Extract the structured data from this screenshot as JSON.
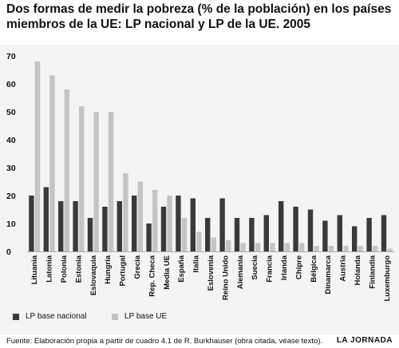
{
  "title": "Dos formas de medir la pobreza (% de la población) en los países miembros de la UE: LP nacional y LP de la UE. 2005",
  "footer": "Fuente: Elaboración propia a partir de cuadro 4.1 de R. Burkhauser (obra citada, véase texto).",
  "brand": "LA JORNADA",
  "colors": {
    "nacional": "#3a3a3a",
    "ue": "#c4c4c4"
  },
  "chart_data": {
    "type": "bar",
    "categories": [
      "Lituania",
      "Latonia",
      "Polonia",
      "Estonia",
      "Eslovaquia",
      "Hungría",
      "Portugal",
      "Grecia",
      "Rep. Checa",
      "Media UE",
      "España",
      "Italia",
      "Eslovenia",
      "Reino Unido",
      "Alemania",
      "Suecia",
      "Francia",
      "Irlanda",
      "Chipre",
      "Bélgica",
      "Dinamarca",
      "Austria",
      "Holanda",
      "Finlandia",
      "Luxemburgo"
    ],
    "series": [
      {
        "name": "LP base nacional",
        "values": [
          20,
          23,
          18,
          18,
          12,
          16,
          18,
          20,
          10,
          16,
          20,
          19,
          12,
          19,
          12,
          12,
          13,
          18,
          16,
          15,
          11,
          13,
          9,
          12,
          13
        ]
      },
      {
        "name": "LP base UE",
        "values": [
          68,
          63,
          58,
          52,
          50,
          50,
          28,
          25,
          22,
          20,
          12,
          7,
          5,
          4,
          3,
          3,
          3,
          3,
          3,
          2,
          2,
          2,
          2,
          2,
          1
        ]
      }
    ],
    "yticks": [
      0,
      10,
      20,
      30,
      40,
      50,
      60,
      70
    ],
    "ylim": [
      0,
      72
    ],
    "grid": false,
    "legend": "bottom"
  }
}
